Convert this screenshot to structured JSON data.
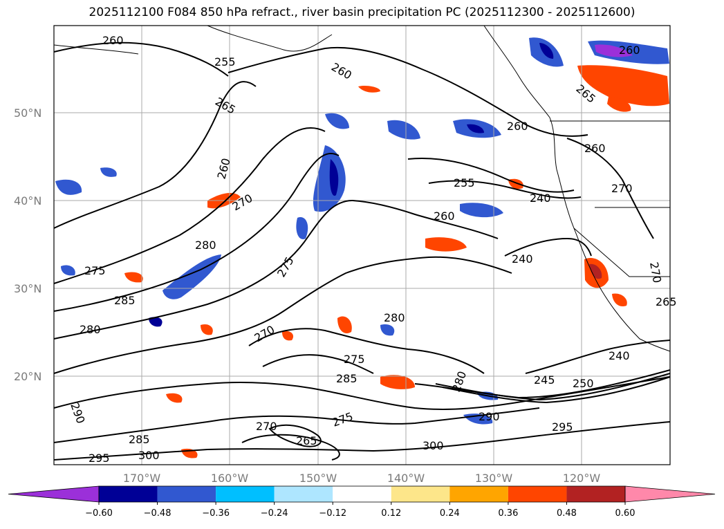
{
  "title": "2025112100 F084 850 hPa refract., river basin precipitation PC (2025112300 - 2025112600)",
  "lat_labels": [
    "50°N",
    "40°N",
    "30°N",
    "20°N"
  ],
  "lon_labels": [
    "170°W",
    "160°W",
    "150°W",
    "140°W",
    "130°W",
    "120°W"
  ],
  "contour_labels": [
    "260",
    "255",
    "260",
    "265",
    "260",
    "270",
    "280",
    "275",
    "285",
    "280",
    "290",
    "295",
    "300",
    "285",
    "270",
    "265",
    "275",
    "270",
    "275",
    "285",
    "280",
    "275",
    "280",
    "290",
    "300",
    "260",
    "255",
    "260",
    "240",
    "240",
    "245",
    "250",
    "295",
    "240",
    "260",
    "265",
    "270",
    "260",
    "270",
    "265"
  ],
  "colorbar": {
    "colors": [
      "#9b30d9",
      "#000096",
      "#3158d0",
      "#00bfff",
      "#aee6ff",
      "#ffffff",
      "#fde68a",
      "#ffa500",
      "#ff4500",
      "#b22222",
      "#ff88aa"
    ],
    "ticks": [
      "−0.60",
      "−0.48",
      "−0.36",
      "−0.24",
      "−0.12",
      "0.12",
      "0.24",
      "0.36",
      "0.48",
      "0.60"
    ]
  }
}
